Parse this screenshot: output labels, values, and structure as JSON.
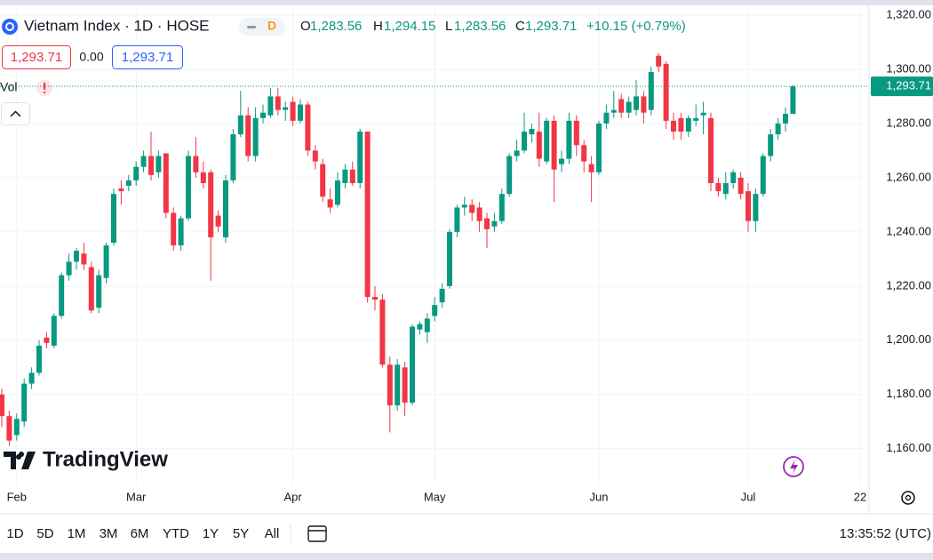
{
  "header": {
    "symbol": "Vietnam Index · 1D · HOSE",
    "badge": "D",
    "ohlc": [
      {
        "key": "O",
        "value": "1,283.56"
      },
      {
        "key": "H",
        "value": "1,294.15"
      },
      {
        "key": "L",
        "value": "1,283.56"
      },
      {
        "key": "C",
        "value": "1,293.71"
      }
    ],
    "change": "+10.15 (+0.79%)",
    "bid": "1,293.71",
    "spread": "0.00",
    "ask": "1,293.71",
    "vol": "Vol"
  },
  "chart_data": {
    "type": "candlestick",
    "categories": [
      null,
      null,
      "Feb",
      null,
      null,
      null,
      null,
      null,
      null,
      null,
      null,
      null,
      null,
      null,
      null,
      null,
      null,
      null,
      "Mar",
      null,
      null,
      null,
      null,
      null,
      null,
      null,
      null,
      null,
      null,
      null,
      null,
      null,
      null,
      null,
      null,
      null,
      null,
      null,
      null,
      "Apr",
      null,
      null,
      null,
      null,
      null,
      null,
      null,
      null,
      null,
      null,
      null,
      null,
      null,
      null,
      null,
      null,
      null,
      null,
      "May",
      null,
      null,
      null,
      null,
      null,
      null,
      null,
      null,
      null,
      null,
      null,
      null,
      null,
      null,
      null,
      null,
      null,
      null,
      null,
      null,
      null,
      "Jun",
      null,
      null,
      null,
      null,
      null,
      null,
      null,
      null,
      null,
      null,
      null,
      null,
      null,
      null,
      null,
      null,
      null,
      null,
      null,
      "Jul",
      null,
      null,
      null,
      null,
      null,
      null,
      null,
      null,
      null,
      null,
      null,
      null,
      null,
      null,
      "22"
    ],
    "open": [
      1180,
      1172,
      1165,
      1170,
      1184,
      1188,
      1201,
      1198,
      1209,
      1224,
      1229,
      1232,
      1227,
      1212,
      1223,
      1236,
      1256,
      1257,
      1259,
      1264,
      1268,
      1262,
      1269,
      1247,
      1235,
      1245,
      1268,
      1262,
      1262,
      1246,
      1238,
      1259,
      1276,
      1283,
      1268,
      1282,
      1283,
      1290,
      1285,
      1288,
      1281,
      1287,
      1270,
      1265,
      1252,
      1250,
      1258,
      1263,
      1258,
      1277,
      1216,
      1215,
      1191,
      1176,
      1190,
      1177,
      1204,
      1203,
      1209,
      1214,
      1220,
      1240,
      1249,
      1250,
      1249,
      1245,
      1242,
      1244,
      1254,
      1268,
      1270,
      1276,
      1277,
      1266,
      1281,
      1265,
      1267,
      1281,
      1272,
      1265,
      1262,
      1280,
      1284,
      1289,
      1284,
      1285,
      1290,
      1285,
      1305,
      1302,
      1281,
      1282,
      1277,
      1281,
      1283,
      1282,
      1258,
      1254,
      1258,
      1260,
      1255,
      1244,
      1254,
      1268,
      1276,
      1280,
      1283.56,
      null,
      null,
      null,
      null,
      null,
      null,
      null,
      null,
      null
    ],
    "high": [
      1182,
      1174,
      1173,
      1186,
      1190,
      1200,
      1203,
      1210,
      1225,
      1232,
      1234,
      1236,
      1229,
      1226,
      1236,
      1256,
      1259,
      1261,
      1266,
      1270,
      1277,
      1270,
      1269,
      1249,
      1246,
      1270,
      1275,
      1266,
      1263,
      1248,
      1261,
      1278,
      1292,
      1286,
      1286,
      1287,
      1293,
      1293,
      1288,
      1290,
      1289,
      1288,
      1272,
      1267,
      1256,
      1262,
      1265,
      1266,
      1278,
      1277,
      1220,
      1217,
      1194,
      1193,
      1192,
      1206,
      1207,
      1210,
      1216,
      1221,
      1241,
      1250,
      1253,
      1252,
      1251,
      1247,
      1247,
      1256,
      1269,
      1274,
      1284,
      1280,
      1284,
      1282,
      1283,
      1270,
      1284,
      1283,
      1274,
      1268,
      1281,
      1287,
      1292,
      1291,
      1290,
      1296,
      1292,
      1301,
      1306,
      1303,
      1284,
      1284,
      1283,
      1287,
      1288,
      1284,
      1260,
      1262,
      1263,
      1262,
      1258,
      1256,
      1269,
      1278,
      1282,
      1286,
      1294.15,
      null,
      null,
      null,
      null,
      null,
      null,
      null,
      null,
      null
    ],
    "low": [
      1168,
      1161,
      1163,
      1168,
      1182,
      1187,
      1197,
      1197,
      1208,
      1222,
      1226,
      1226,
      1210,
      1210,
      1221,
      1235,
      1250,
      1255,
      1257,
      1262,
      1259,
      1260,
      1245,
      1233,
      1233,
      1244,
      1260,
      1256,
      1222,
      1240,
      1236,
      1258,
      1275,
      1266,
      1266,
      1280,
      1282,
      1283,
      1281,
      1279,
      1280,
      1268,
      1263,
      1251,
      1247,
      1249,
      1256,
      1257,
      1256,
      1214,
      1211,
      1190,
      1166,
      1174,
      1172,
      1176,
      1202,
      1199,
      1207,
      1212,
      1219,
      1238,
      1246,
      1244,
      1240,
      1234,
      1240,
      1243,
      1253,
      1266,
      1269,
      1273,
      1264,
      1265,
      1251,
      1262,
      1265,
      1268,
      1262,
      1251,
      1261,
      1278,
      1282,
      1282,
      1282,
      1283,
      1280,
      1283,
      1299,
      1278,
      1274,
      1274,
      1275,
      1279,
      1276,
      1255,
      1253,
      1252,
      1256,
      1252,
      1240,
      1240,
      1253,
      1266,
      1274,
      1277,
      1283.56,
      null,
      null,
      null,
      null,
      null,
      null,
      null,
      null,
      null
    ],
    "close": [
      1172,
      1163,
      1171,
      1184,
      1188,
      1198,
      1199,
      1209,
      1224,
      1229,
      1233,
      1228,
      1211,
      1224,
      1235,
      1254,
      1255,
      1259,
      1264,
      1268,
      1261,
      1268,
      1247,
      1235,
      1245,
      1268,
      1262,
      1258,
      1238,
      1242,
      1259,
      1276,
      1283,
      1268,
      1282,
      1284,
      1290,
      1285,
      1286,
      1281,
      1287,
      1270,
      1266,
      1253,
      1249,
      1259,
      1263,
      1258,
      1277,
      1216,
      1215,
      1191,
      1176,
      1191,
      1177,
      1205,
      1206,
      1208,
      1213,
      1219,
      1240,
      1249,
      1250,
      1247,
      1244,
      1241,
      1244,
      1254,
      1268,
      1270,
      1277,
      1278,
      1267,
      1281,
      1263,
      1267,
      1281,
      1272,
      1266,
      1262,
      1280,
      1284,
      1285,
      1284,
      1288,
      1290,
      1284,
      1299,
      1301,
      1281,
      1277,
      1277,
      1282,
      1282,
      1284,
      1258,
      1255,
      1258,
      1262,
      1254,
      1244,
      1254,
      1268,
      1276,
      1280,
      1283.56,
      1293.71,
      null,
      null,
      null,
      null,
      null,
      null,
      null,
      null,
      null
    ],
    "up_color": "#089981",
    "down_color": "#f23645",
    "grid": true,
    "ylim": [
      1146.8,
      1323.6
    ],
    "yticks": [
      {
        "value": 1160,
        "label": "1,160.00"
      },
      {
        "value": 1180,
        "label": "1,180.00"
      },
      {
        "value": 1200,
        "label": "1,200.00"
      },
      {
        "value": 1220,
        "label": "1,220.00"
      },
      {
        "value": 1240,
        "label": "1,240.00"
      },
      {
        "value": 1260,
        "label": "1,260.00"
      },
      {
        "value": 1280,
        "label": "1,280.00"
      },
      {
        "value": 1300,
        "label": "1,300.00"
      },
      {
        "value": 1320,
        "label": "1,320.00"
      }
    ],
    "last_price": {
      "value": 1293.71,
      "label": "1,293.71"
    }
  },
  "logo": "TradingView",
  "toolbar": {
    "ranges": [
      "1D",
      "5D",
      "1M",
      "3M",
      "6M",
      "YTD",
      "1Y",
      "5Y",
      "All"
    ],
    "time": "13:35:52 (UTC)"
  }
}
